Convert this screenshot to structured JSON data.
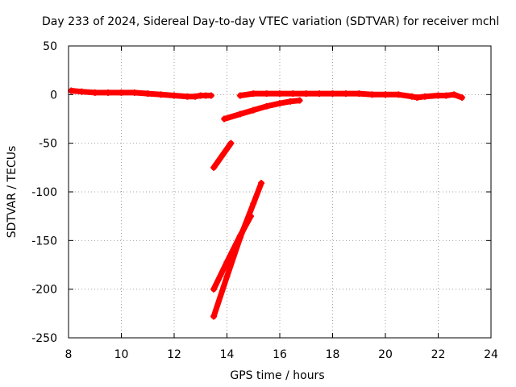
{
  "chart_data": {
    "type": "scatter",
    "title": "Day 233 of 2024, Sidereal Day-to-day VTEC variation (SDTVAR) for receiver mchl",
    "xlabel": "GPS time / hours",
    "ylabel": "SDTVAR / TECUs",
    "xlim": [
      8,
      24
    ],
    "ylim": [
      -250,
      50
    ],
    "xticks": [
      8,
      10,
      12,
      14,
      16,
      18,
      20,
      22,
      24
    ],
    "yticks": [
      50,
      0,
      -50,
      -100,
      -150,
      -200,
      -250
    ],
    "grid": true,
    "color": "#ff0000",
    "series": [
      {
        "x": [
          8.1,
          8.5,
          9.0,
          9.5,
          10.0,
          10.5,
          11.0,
          11.5,
          12.0,
          12.5,
          12.8,
          13.0,
          13.2,
          13.4
        ],
        "y": [
          4,
          3,
          2,
          2,
          2,
          2,
          1,
          0,
          -1,
          -2,
          -2,
          -1,
          -1,
          -1
        ]
      },
      {
        "x": [
          14.5,
          15.0,
          15.5,
          16.0,
          16.5,
          17.0,
          17.5,
          18.0,
          18.5,
          19.0,
          19.5,
          20.0,
          20.5,
          21.0,
          21.2,
          21.5,
          22.0,
          22.3,
          22.6,
          22.9
        ],
        "y": [
          -1,
          1,
          1,
          1,
          1,
          1,
          1,
          1,
          1,
          1,
          0,
          0,
          0,
          -2,
          -3,
          -2,
          -1,
          -1,
          0,
          -3
        ]
      },
      {
        "x": [
          13.9,
          14.5,
          15.0,
          15.5,
          16.0,
          16.4,
          16.75
        ],
        "y": [
          -25,
          -20,
          -16,
          -12,
          -9,
          -7,
          -6
        ]
      },
      {
        "x": [
          13.5,
          14.15
        ],
        "y": [
          -75,
          -50
        ]
      },
      {
        "x": [
          13.5,
          14.0,
          14.5,
          14.9
        ],
        "y": [
          -200,
          -172,
          -145,
          -125
        ]
      },
      {
        "x": [
          13.5,
          14.0,
          14.5,
          15.0,
          15.3
        ],
        "y": [
          -228,
          -187,
          -147,
          -112,
          -91
        ]
      }
    ]
  }
}
